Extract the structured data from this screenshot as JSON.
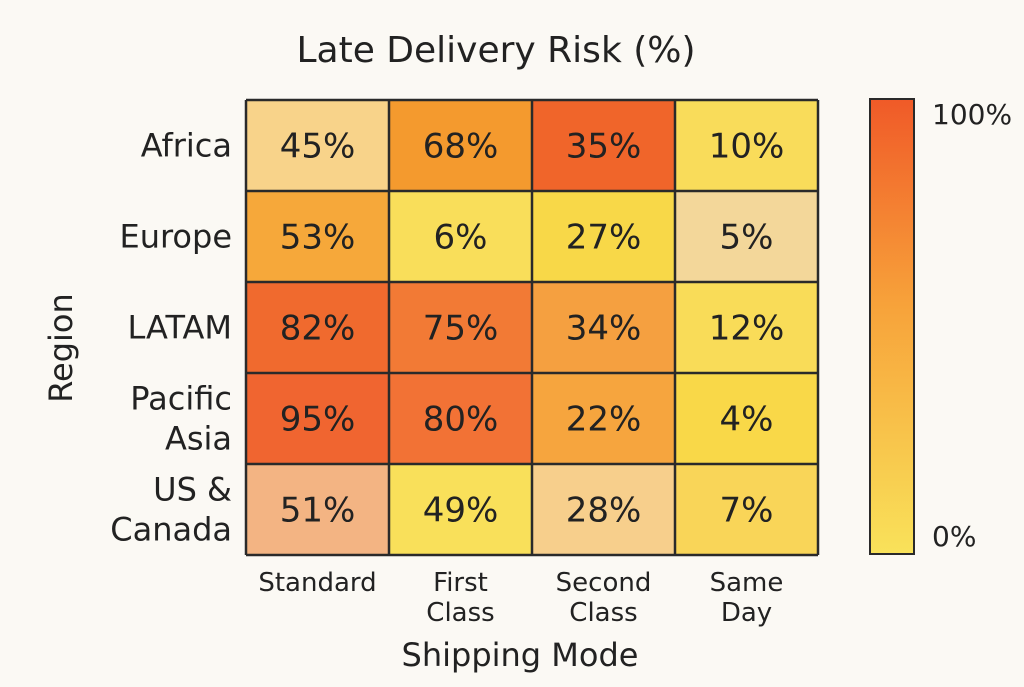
{
  "chart_data": {
    "type": "heatmap",
    "title": "Late Delivery Risk (%)",
    "xlabel": "Shipping Mode",
    "ylabel": "Region",
    "x_categories": [
      [
        "Standard"
      ],
      [
        "First",
        "Class"
      ],
      [
        "Second",
        "Class"
      ],
      [
        "Same",
        "Day"
      ]
    ],
    "y_categories": [
      [
        "Africa"
      ],
      [
        "Europe"
      ],
      [
        "LATAM"
      ],
      [
        "Pacific",
        "Asia"
      ],
      [
        "US &",
        "Canada"
      ]
    ],
    "values": [
      [
        45,
        68,
        35,
        10
      ],
      [
        53,
        6,
        27,
        5
      ],
      [
        82,
        75,
        34,
        12
      ],
      [
        95,
        80,
        22,
        4
      ],
      [
        51,
        49,
        28,
        7
      ]
    ],
    "cell_labels": [
      [
        "45%",
        "68%",
        "35%",
        "10%"
      ],
      [
        "53%",
        "6%",
        "27%",
        "5%"
      ],
      [
        "82%",
        "75%",
        "34%",
        "12%"
      ],
      [
        "95%",
        "80%",
        "22%",
        "4%"
      ],
      [
        "51%",
        "49%",
        "28%",
        "7%"
      ]
    ],
    "cell_colors": [
      [
        "#f8d38a",
        "#f49a2e",
        "#f0652a",
        "#f9dc5a"
      ],
      [
        "#f6a83a",
        "#f9de5a",
        "#f8d848",
        "#f3d79a"
      ],
      [
        "#f06a2e",
        "#f27a35",
        "#f5a040",
        "#f9dc58"
      ],
      [
        "#f06530",
        "#f27235",
        "#f6a53e",
        "#f9d848"
      ],
      [
        "#f3b483",
        "#f9e05a",
        "#f7cf8c",
        "#f9d558"
      ]
    ],
    "colorbar": {
      "max_label": "100%",
      "min_label": "0%",
      "range": [
        0,
        100
      ],
      "color_high": "#f05a28",
      "color_mid": "#f7a23a",
      "color_low": "#f9e25a"
    },
    "grid": true,
    "legend": "right"
  }
}
